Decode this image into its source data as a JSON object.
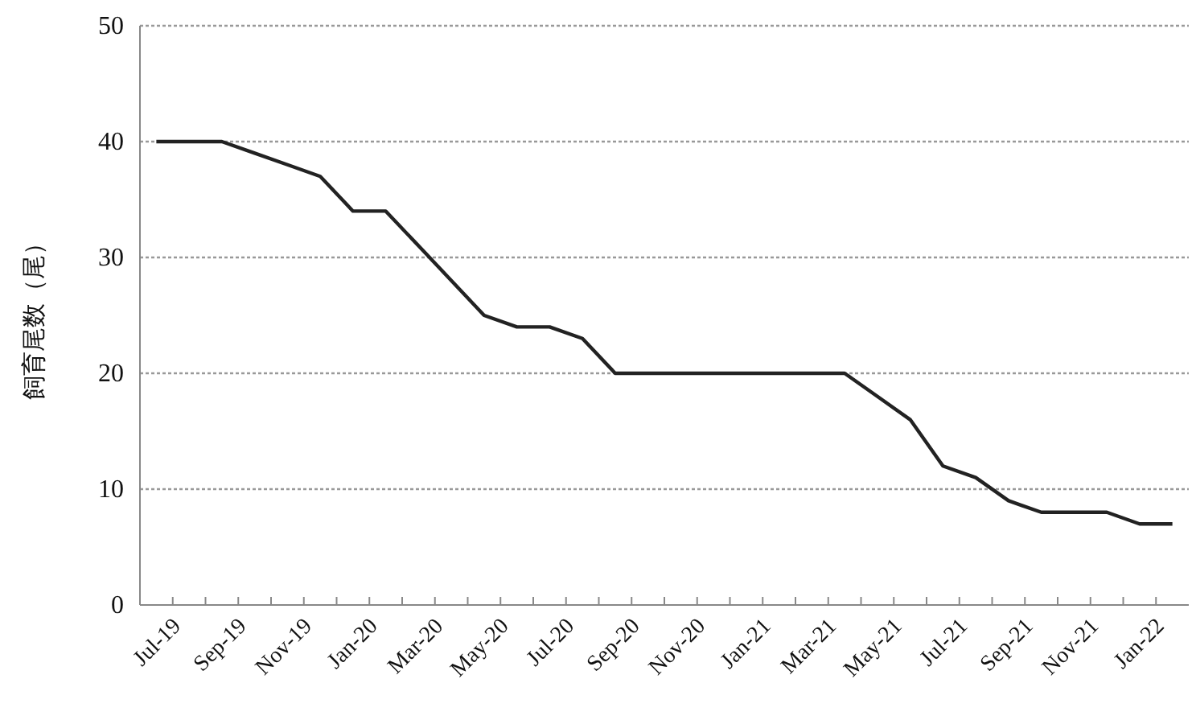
{
  "chart_data": {
    "type": "line",
    "ylabel": "飼育尾数（尾）",
    "categories": [
      "Jul-19",
      null,
      "Sep-19",
      null,
      "Nov-19",
      null,
      "Jan-20",
      null,
      "Mar-20",
      null,
      "May-20",
      null,
      "Jul-20",
      null,
      "Sep-20",
      null,
      "Nov-20",
      null,
      "Jan-21",
      null,
      "Mar-21",
      null,
      "May-21",
      null,
      "Jul-21",
      null,
      "Sep-21",
      null,
      "Nov-21",
      null,
      "Jan-22",
      null
    ],
    "series": [
      {
        "color": "#222222",
        "values": [
          40,
          40,
          40,
          39,
          38,
          37,
          34,
          34,
          31,
          28,
          25,
          24,
          24,
          23,
          20,
          20,
          20,
          20,
          20,
          20,
          20,
          20,
          18,
          16,
          12,
          11,
          9,
          8,
          8,
          8,
          7,
          7
        ]
      }
    ],
    "ylim": [
      0,
      50
    ],
    "yticks": [
      0,
      10,
      20,
      30,
      40,
      50
    ],
    "grid": "y",
    "marker": "none",
    "line_style": "solid"
  }
}
